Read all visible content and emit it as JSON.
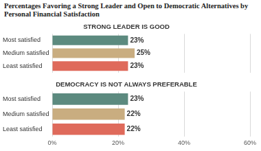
{
  "title": "Percentages Favoring a Strong Leader and Open to Democratic Alternatives by Personal Financial Satisfaction",
  "chart_data": [
    {
      "type": "bar",
      "title": "STRONG LEADER IS GOOD",
      "orientation": "horizontal",
      "categories": [
        "Most satisfied",
        "Medium satisfied",
        "Least satisfied"
      ],
      "values": [
        23,
        25,
        23
      ],
      "value_labels": [
        "23%",
        "25%",
        "23%"
      ],
      "colors": [
        "#5c8a7f",
        "#c9ad80",
        "#df6a5b"
      ],
      "xlim": [
        0,
        60
      ],
      "xticks": [
        0,
        20,
        40,
        60
      ],
      "grid": true,
      "data_labels": true,
      "tick_labels": "y"
    },
    {
      "type": "bar",
      "title": "DEMOCRACY IS NOT ALWAYS PREFERABLE",
      "orientation": "horizontal",
      "categories": [
        "Most satisfied",
        "Medium satisfied",
        "Least satisfied"
      ],
      "values": [
        23,
        22,
        22
      ],
      "value_labels": [
        "23%",
        "22%",
        "22%"
      ],
      "colors": [
        "#5c8a7f",
        "#c9ad80",
        "#df6a5b"
      ],
      "xlim": [
        0,
        60
      ],
      "xticks": [
        {
          "value": 0,
          "label": "0%"
        },
        {
          "value": 20,
          "label": "20%"
        },
        {
          "value": 40,
          "label": "40%"
        },
        {
          "value": 60,
          "label": "60%"
        }
      ],
      "grid": true,
      "data_labels": true
    }
  ]
}
